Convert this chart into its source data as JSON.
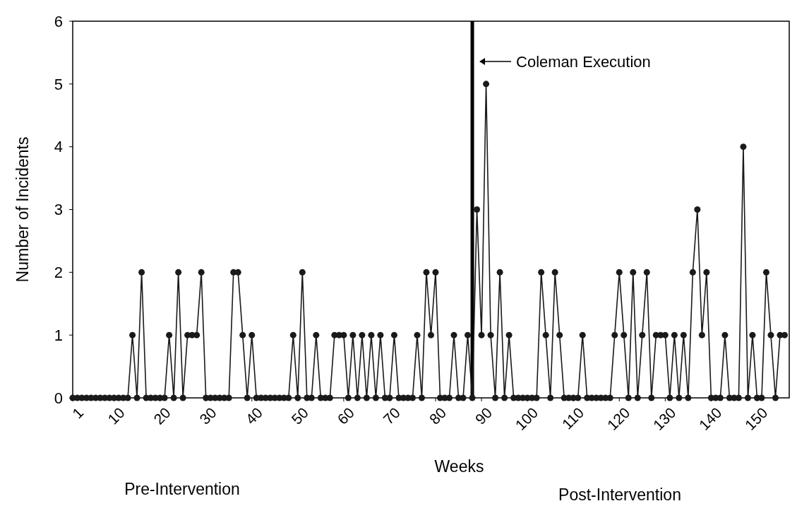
{
  "chart_data": {
    "type": "line",
    "xlabel": "Weeks",
    "ylabel": "Number of Incidents",
    "x": [
      1,
      2,
      3,
      4,
      5,
      6,
      7,
      8,
      9,
      10,
      11,
      12,
      13,
      14,
      15,
      16,
      17,
      18,
      19,
      20,
      21,
      22,
      23,
      24,
      25,
      26,
      27,
      28,
      29,
      30,
      31,
      32,
      33,
      34,
      35,
      36,
      37,
      38,
      39,
      40,
      41,
      42,
      43,
      44,
      45,
      46,
      47,
      48,
      49,
      50,
      51,
      52,
      53,
      54,
      55,
      56,
      57,
      58,
      59,
      60,
      61,
      62,
      63,
      64,
      65,
      66,
      67,
      68,
      69,
      70,
      71,
      72,
      73,
      74,
      75,
      76,
      77,
      78,
      79,
      80,
      81,
      82,
      83,
      84,
      85,
      86,
      87,
      88,
      89,
      90,
      91,
      92,
      93,
      94,
      95,
      96,
      97,
      98,
      99,
      100,
      101,
      102,
      103,
      104,
      105,
      106,
      107,
      108,
      109,
      110,
      111,
      112,
      113,
      114,
      115,
      116,
      117,
      118,
      119,
      120,
      121,
      122,
      123,
      124,
      125,
      126,
      127,
      128,
      129,
      130,
      131,
      132,
      133,
      134,
      135,
      136,
      137,
      138,
      139,
      140,
      141,
      142,
      143,
      144,
      145,
      146,
      147,
      148,
      149,
      150,
      151,
      152,
      153,
      154,
      155,
      156
    ],
    "series": [
      {
        "color": "#1a1a1a",
        "values": [
          0,
          0,
          0,
          0,
          0,
          0,
          0,
          0,
          0,
          0,
          0,
          0,
          0,
          1,
          0,
          2,
          0,
          0,
          0,
          0,
          0,
          1,
          0,
          2,
          0,
          1,
          1,
          1,
          2,
          0,
          0,
          0,
          0,
          0,
          0,
          2,
          2,
          1,
          0,
          1,
          0,
          0,
          0,
          0,
          0,
          0,
          0,
          0,
          1,
          0,
          2,
          0,
          0,
          1,
          0,
          0,
          0,
          1,
          1,
          1,
          0,
          1,
          0,
          1,
          0,
          1,
          0,
          1,
          0,
          0,
          1,
          0,
          0,
          0,
          0,
          1,
          0,
          2,
          1,
          2,
          0,
          0,
          0,
          1,
          0,
          0,
          1,
          0,
          3,
          1,
          5,
          1,
          0,
          2,
          0,
          1,
          0,
          0,
          0,
          0,
          0,
          0,
          2,
          1,
          0,
          2,
          1,
          0,
          0,
          0,
          0,
          1,
          0,
          0,
          0,
          0,
          0,
          0,
          1,
          2,
          1,
          0,
          2,
          0,
          1,
          2,
          0,
          1,
          1,
          1,
          0,
          1,
          0,
          1,
          0,
          2,
          3,
          1,
          2,
          0,
          0,
          0,
          1,
          0,
          0,
          0,
          4,
          0,
          1,
          0,
          0,
          2,
          1,
          0,
          1,
          1
        ]
      }
    ],
    "xlim": [
      1,
      157
    ],
    "xticks": [
      1,
      10,
      20,
      30,
      40,
      50,
      60,
      70,
      80,
      90,
      100,
      110,
      120,
      130,
      140,
      150
    ],
    "ylim": [
      0,
      6
    ],
    "yticks": [
      0,
      1,
      2,
      3,
      4,
      5,
      6
    ],
    "marker": "circle",
    "line_style": "solid",
    "ref_lines": [
      {
        "axis": "x",
        "value": 88,
        "label": "Coleman Execution",
        "color": "#000000"
      }
    ],
    "annotations": [
      "Pre-Intervention",
      "Post-Intervention"
    ]
  }
}
